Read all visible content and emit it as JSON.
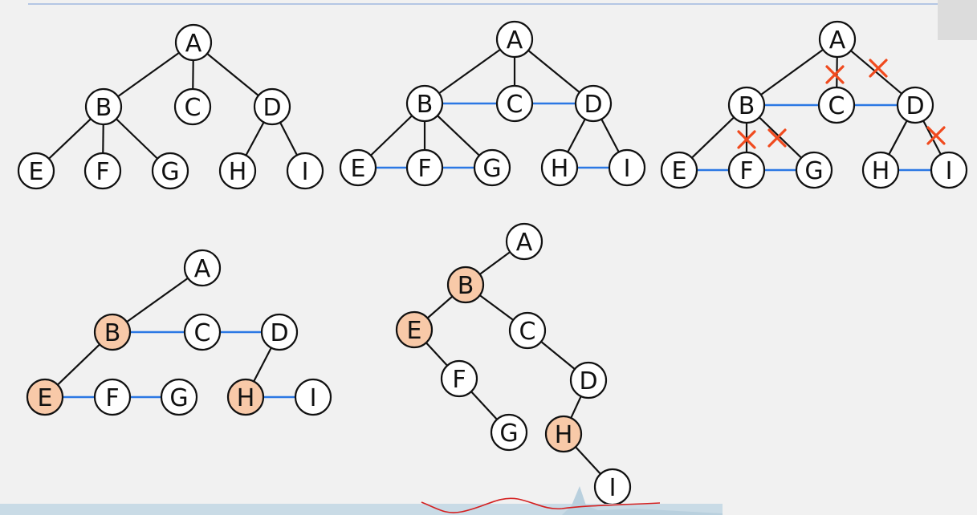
{
  "colors": {
    "background": "#f1f1f1",
    "tree_edge": "#111111",
    "sibling_link": "#2b78e4",
    "cut_mark": "#f04a1e",
    "node_fill": "#ffffff",
    "highlight_fill": "#f8c9a8",
    "scribble": "#d42020",
    "bottom_strip": "#c9dbe6"
  },
  "nodes": {
    "A": "A",
    "B": "B",
    "C": "C",
    "D": "D",
    "E": "E",
    "F": "F",
    "G": "G",
    "H": "H",
    "I": "I"
  },
  "diagrams": [
    {
      "id": "original-tree",
      "edges": [
        [
          "A",
          "B"
        ],
        [
          "A",
          "C"
        ],
        [
          "A",
          "D"
        ],
        [
          "B",
          "E"
        ],
        [
          "B",
          "F"
        ],
        [
          "B",
          "G"
        ],
        [
          "D",
          "H"
        ],
        [
          "D",
          "I"
        ]
      ],
      "sibling_links": [],
      "cut_marks": 0,
      "highlighted": []
    },
    {
      "id": "add-sibling-links",
      "edges": [
        [
          "A",
          "B"
        ],
        [
          "A",
          "C"
        ],
        [
          "A",
          "D"
        ],
        [
          "B",
          "E"
        ],
        [
          "B",
          "F"
        ],
        [
          "B",
          "G"
        ],
        [
          "D",
          "H"
        ],
        [
          "D",
          "I"
        ]
      ],
      "sibling_links": [
        [
          "B",
          "C"
        ],
        [
          "C",
          "D"
        ],
        [
          "E",
          "F"
        ],
        [
          "F",
          "G"
        ],
        [
          "H",
          "I"
        ]
      ],
      "cut_marks": 0,
      "highlighted": []
    },
    {
      "id": "remove-non-first-child-edges",
      "edges": [
        [
          "A",
          "B"
        ],
        [
          "A",
          "C"
        ],
        [
          "A",
          "D"
        ],
        [
          "B",
          "E"
        ],
        [
          "B",
          "F"
        ],
        [
          "B",
          "G"
        ],
        [
          "D",
          "H"
        ],
        [
          "D",
          "I"
        ]
      ],
      "sibling_links": [
        [
          "B",
          "C"
        ],
        [
          "C",
          "D"
        ],
        [
          "E",
          "F"
        ],
        [
          "F",
          "G"
        ],
        [
          "H",
          "I"
        ]
      ],
      "cut_marks": 5,
      "highlighted": []
    },
    {
      "id": "first-child-next-sibling",
      "edges": [
        [
          "A",
          "B"
        ],
        [
          "B",
          "E"
        ],
        [
          "D",
          "H"
        ]
      ],
      "sibling_links": [
        [
          "B",
          "C"
        ],
        [
          "C",
          "D"
        ],
        [
          "E",
          "F"
        ],
        [
          "F",
          "G"
        ],
        [
          "H",
          "I"
        ]
      ],
      "cut_marks": 0,
      "highlighted": [
        "B",
        "E",
        "H"
      ]
    },
    {
      "id": "binary-tree-result",
      "edges": [
        [
          "A",
          "B"
        ],
        [
          "B",
          "E"
        ],
        [
          "B",
          "C"
        ],
        [
          "E",
          "F"
        ],
        [
          "F",
          "G"
        ],
        [
          "C",
          "D"
        ],
        [
          "D",
          "H"
        ],
        [
          "H",
          "I"
        ]
      ],
      "sibling_links": [],
      "cut_marks": 0,
      "highlighted": [
        "B",
        "E",
        "H"
      ]
    }
  ]
}
